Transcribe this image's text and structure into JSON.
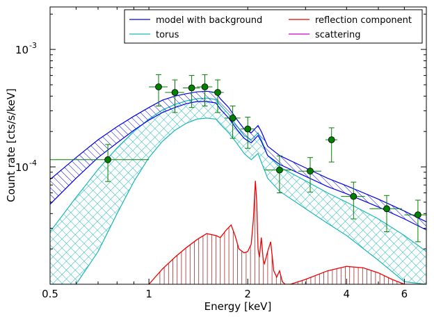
{
  "chart_data": {
    "type": "line",
    "xlabel": "Energy [keV]",
    "ylabel": "Count rate [cts/s/keV]",
    "x_scale": "log",
    "y_scale": "log",
    "xlim": [
      0.5,
      7.0
    ],
    "ylim": [
      1e-05,
      0.0023
    ],
    "x_ticks": [
      {
        "value": 0.5,
        "label": "0.5"
      },
      {
        "value": 1,
        "label": "1"
      },
      {
        "value": 2,
        "label": "2"
      },
      {
        "value": 4,
        "label": "4"
      },
      {
        "value": 6,
        "label": "6"
      }
    ],
    "y_ticks": [
      {
        "value": 0.0001,
        "label": "10",
        "exponent": "-4"
      },
      {
        "value": 0.001,
        "label": "10",
        "exponent": "-3"
      }
    ],
    "legend": {
      "placement": "top-right",
      "entries": [
        {
          "name": "model with background",
          "color": "#0000ee"
        },
        {
          "name": "reflection component",
          "color": "#ee0000"
        },
        {
          "name": "torus",
          "color": "#1ab8b8"
        },
        {
          "name": "scattering",
          "color": "#cc00cc"
        }
      ]
    },
    "data_points": {
      "color": "#008000",
      "x": [
        0.75,
        1.07,
        1.2,
        1.35,
        1.48,
        1.62,
        1.8,
        2.0,
        2.5,
        3.1,
        3.6,
        4.2,
        5.3,
        6.6
      ],
      "y": [
        0.000115,
        0.00048,
        0.00043,
        0.00047,
        0.00048,
        0.00043,
        0.00026,
        0.00021,
        9.4e-05,
        9.2e-05,
        0.00017,
        5.6e-05,
        4.4e-05,
        3.9e-05
      ],
      "xerr_low": [
        0.25,
        0.07,
        0.08,
        0.08,
        0.08,
        0.07,
        0.1,
        0.1,
        0.25,
        0.25,
        0.15,
        0.35,
        0.6,
        0.6
      ],
      "xerr_high": [
        0.25,
        0.07,
        0.08,
        0.08,
        0.08,
        0.07,
        0.1,
        0.1,
        0.25,
        0.25,
        0.15,
        0.35,
        0.6,
        0.4
      ],
      "yerr_low": [
        4e-05,
        0.00015,
        0.00014,
        0.00015,
        0.00015,
        0.00014,
        8.5e-05,
        6.6e-05,
        3.4e-05,
        3.1e-05,
        6e-05,
        2e-05,
        1.6e-05,
        1.6e-05
      ],
      "yerr_high": [
        4e-05,
        0.00013,
        0.00012,
        0.00013,
        0.00013,
        0.00012,
        7e-05,
        5.5e-05,
        3e-05,
        2.8e-05,
        4.5e-05,
        1.8e-05,
        1.3e-05,
        1.3e-05
      ]
    },
    "model_band": {
      "color": "#0000ee",
      "x": [
        0.5,
        0.6,
        0.7,
        0.8,
        0.9,
        1.0,
        1.1,
        1.2,
        1.3,
        1.4,
        1.5,
        1.6,
        1.65,
        1.75,
        1.85,
        1.95,
        2.05,
        2.15,
        2.2,
        2.3,
        2.5,
        3.0,
        3.5,
        4.0,
        5.0,
        6.0,
        7.0
      ],
      "upper": [
        7.8e-05,
        0.00012,
        0.00017,
        0.00022,
        0.00027,
        0.00032,
        0.00037,
        0.0004,
        0.00042,
        0.000435,
        0.00044,
        0.00043,
        0.00038,
        0.00032,
        0.000255,
        0.00021,
        0.000195,
        0.000225,
        0.0002,
        0.00015,
        0.000125,
        9.8e-05,
        8e-05,
        6.9e-05,
        5.3e-05,
        4.2e-05,
        3.4e-05
      ],
      "lower": [
        4.8e-05,
        8e-05,
        0.00012,
        0.00016,
        0.000205,
        0.00025,
        0.00029,
        0.00032,
        0.000345,
        0.00036,
        0.00036,
        0.00035,
        0.00031,
        0.00026,
        0.00021,
        0.000175,
        0.00016,
        0.000185,
        0.000165,
        0.000125,
        0.000105,
        8.3e-05,
        6.8e-05,
        5.9e-05,
        4.55e-05,
        3.6e-05,
        2.9e-05
      ]
    },
    "torus_band": {
      "color": "#1ab8b8",
      "x": [
        0.5,
        0.6,
        0.7,
        0.8,
        0.9,
        1.0,
        1.1,
        1.2,
        1.3,
        1.4,
        1.5,
        1.6,
        1.65,
        1.75,
        1.85,
        1.95,
        2.05,
        2.15,
        2.2,
        2.3,
        2.5,
        3.0,
        3.5,
        4.0,
        5.0,
        6.0,
        7.0
      ],
      "upper": [
        2.8e-05,
        5.5e-05,
        9.5e-05,
        0.000145,
        0.0002,
        0.000255,
        0.000305,
        0.00034,
        0.000365,
        0.00038,
        0.000385,
        0.000375,
        0.000335,
        0.00028,
        0.000225,
        0.000185,
        0.00017,
        0.000195,
        0.00017,
        0.000125,
        0.0001,
        7.6e-05,
        6e-05,
        5e-05,
        3.6e-05,
        2.6e-05,
        1.9e-05
      ],
      "lower": [
        1e-05,
        1e-05,
        1.9e-05,
        4e-05,
        7.5e-05,
        0.00012,
        0.000165,
        0.000205,
        0.000235,
        0.000255,
        0.00026,
        0.000255,
        0.00023,
        0.000195,
        0.00016,
        0.00013,
        0.000115,
        0.00013,
        0.00011,
        8e-05,
        6.2e-05,
        4.4e-05,
        3.3e-05,
        2.6e-05,
        1.6e-05,
        1.05e-05,
        1e-05
      ]
    },
    "reflection_component": {
      "color": "#ee0000",
      "x": [
        1.0,
        1.1,
        1.2,
        1.3,
        1.4,
        1.5,
        1.6,
        1.65,
        1.72,
        1.78,
        1.83,
        1.88,
        1.95,
        2.0,
        2.05,
        2.08,
        2.11,
        2.13,
        2.15,
        2.17,
        2.2,
        2.23,
        2.25,
        2.3,
        2.35,
        2.4,
        2.45,
        2.5,
        2.55,
        2.6,
        2.7,
        3.0,
        3.5,
        4.0,
        4.5,
        5.0,
        5.5,
        6.0,
        6.5,
        7.0
      ],
      "y": [
        1e-05,
        1.35e-05,
        1.7e-05,
        2.05e-05,
        2.4e-05,
        2.7e-05,
        2.6e-05,
        2.5e-05,
        2.9e-05,
        3.2e-05,
        2.6e-05,
        2e-05,
        1.85e-05,
        1.9e-05,
        2.2e-05,
        3.5e-05,
        7.6e-05,
        5e-05,
        2e-05,
        1.7e-05,
        2.5e-05,
        1.6e-05,
        1.5e-05,
        1.9e-05,
        2.3e-05,
        1.3e-05,
        1.15e-05,
        1.3e-05,
        1.05e-05,
        1e-05,
        1e-05,
        1.1e-05,
        1.3e-05,
        1.42e-05,
        1.38e-05,
        1.25e-05,
        1.1e-05,
        1e-05,
        1e-05,
        1e-05
      ]
    }
  }
}
